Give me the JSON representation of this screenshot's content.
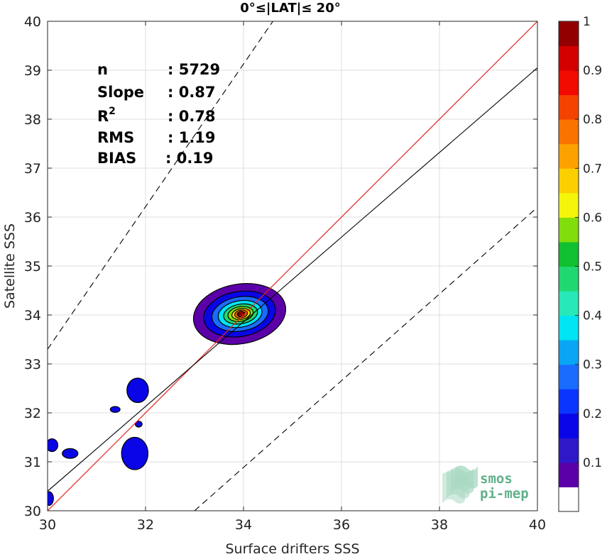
{
  "chart_data": {
    "type": "heatmap",
    "title": "0°≤|LAT|≤ 20°",
    "xlabel": "Surface drifters SSS",
    "ylabel": "Satellite SSS",
    "xlim": [
      30,
      40
    ],
    "ylim": [
      30,
      40
    ],
    "x_ticks": [
      "30",
      "32",
      "34",
      "36",
      "38",
      "40"
    ],
    "y_ticks": [
      "30",
      "31",
      "32",
      "33",
      "34",
      "35",
      "36",
      "37",
      "38",
      "39",
      "40"
    ],
    "grid": true,
    "stats": [
      {
        "label": "n",
        "value": ": 5729"
      },
      {
        "label": "Slope",
        "value": ": 0.87"
      },
      {
        "label": "R",
        "sup": "2",
        "value": ": 0.78"
      },
      {
        "label": "RMS",
        "value": ": 1.19"
      },
      {
        "label": "BIAS",
        "value": ": 0.19"
      }
    ],
    "lines": {
      "identity": {
        "slope": 1,
        "intercept": 0,
        "color": "#e8251f"
      },
      "fit": {
        "points": [
          [
            30,
            30.4
          ],
          [
            40,
            39.05
          ]
        ],
        "color": "#000000"
      },
      "upper_dashed": {
        "points": [
          [
            30,
            33.3
          ],
          [
            34.6,
            40
          ]
        ],
        "color": "#000000"
      },
      "lower_dashed": {
        "points": [
          [
            33,
            30
          ],
          [
            40,
            36.2
          ]
        ],
        "color": "#000000"
      }
    },
    "density_peak": {
      "x": 33.95,
      "y": 34.02
    },
    "main_cluster_levels": [
      {
        "level": 0.05,
        "rx": 0.95,
        "ry": 0.61,
        "cx": 33.92,
        "cy": 34.02
      },
      {
        "level": 0.15,
        "rx": 0.74,
        "ry": 0.46,
        "cx": 33.92,
        "cy": 34.02
      },
      {
        "level": 0.25,
        "rx": 0.58,
        "ry": 0.35,
        "cx": 33.93,
        "cy": 34.02
      },
      {
        "level": 0.35,
        "rx": 0.45,
        "ry": 0.27,
        "cx": 33.93,
        "cy": 34.02
      },
      {
        "level": 0.45,
        "rx": 0.35,
        "ry": 0.2,
        "cx": 33.94,
        "cy": 34.02
      },
      {
        "level": 0.55,
        "rx": 0.26,
        "ry": 0.15,
        "cx": 33.94,
        "cy": 34.02
      },
      {
        "level": 0.65,
        "rx": 0.19,
        "ry": 0.11,
        "cx": 33.95,
        "cy": 34.02
      },
      {
        "level": 0.75,
        "rx": 0.13,
        "ry": 0.08,
        "cx": 33.95,
        "cy": 34.02
      },
      {
        "level": 0.85,
        "rx": 0.08,
        "ry": 0.05,
        "cx": 33.95,
        "cy": 34.02
      }
    ],
    "outlier_blobs": [
      {
        "cx": 31.84,
        "cy": 32.46,
        "rx": 0.22,
        "ry": 0.25,
        "level": 0.15
      },
      {
        "cx": 31.78,
        "cy": 31.17,
        "rx": 0.27,
        "ry": 0.33,
        "level": 0.15
      },
      {
        "cx": 30.09,
        "cy": 31.34,
        "rx": 0.12,
        "ry": 0.13,
        "level": 0.15
      },
      {
        "cx": 30.46,
        "cy": 31.17,
        "rx": 0.16,
        "ry": 0.1,
        "level": 0.15
      },
      {
        "cx": 31.38,
        "cy": 32.07,
        "rx": 0.1,
        "ry": 0.06,
        "level": 0.15
      },
      {
        "cx": 31.86,
        "cy": 31.77,
        "rx": 0.07,
        "ry": 0.06,
        "level": 0.15
      },
      {
        "cx": 30.03,
        "cy": 30.25,
        "rx": 0.09,
        "ry": 0.14,
        "level": 0.15
      }
    ],
    "colorbar": {
      "min": 0,
      "max": 1,
      "ticks": [
        "0.1",
        "0.2",
        "0.3",
        "0.4",
        "0.5",
        "0.6",
        "0.7",
        "0.8",
        "0.9",
        "1"
      ],
      "colors": [
        "#ffffff",
        "#5b00a8",
        "#2e18c8",
        "#0a05e6",
        "#0a35ff",
        "#1a6cff",
        "#0aa6f5",
        "#00e4f4",
        "#27e8b8",
        "#20d870",
        "#10c030",
        "#82dd0c",
        "#f4f50a",
        "#fcd000",
        "#fca200",
        "#f87300",
        "#f44200",
        "#f00a00",
        "#d40000",
        "#920000"
      ]
    }
  },
  "logo": {
    "line1": "smos",
    "line2": "pi-mep"
  }
}
